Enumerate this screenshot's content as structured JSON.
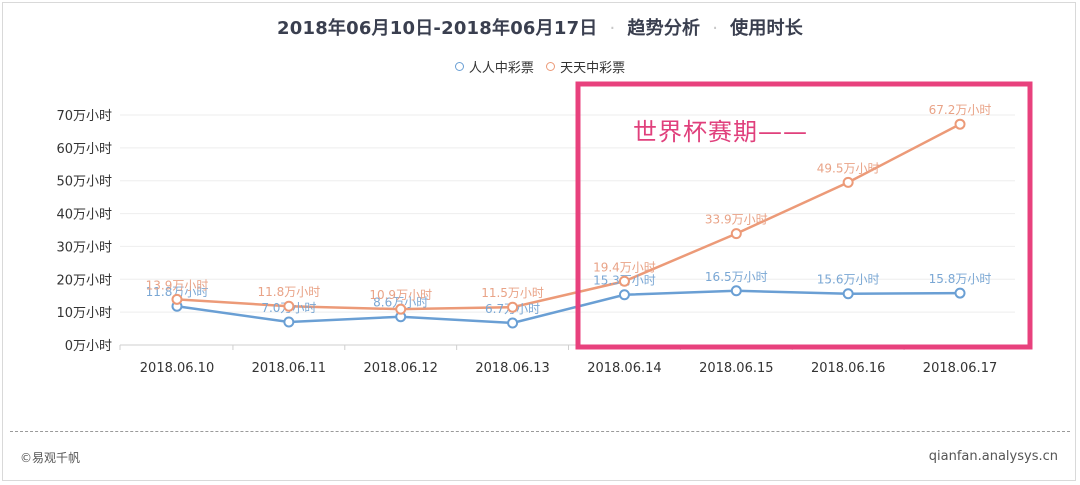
{
  "header": {
    "date_range": "2018年06月10日-2018年06月17日",
    "section": "趋势分析",
    "metric": "使用时长",
    "separator": "·"
  },
  "legend": [
    {
      "label": "人人中彩票",
      "color": "#6a9fd4"
    },
    {
      "label": "天天中彩票",
      "color": "#ec9a78"
    }
  ],
  "annotation": {
    "text": "世界杯赛期——",
    "color": "#e8417d"
  },
  "footer": {
    "copyright": "©易观千帆",
    "site": "qianfan.analysys.cn"
  },
  "chart_data": {
    "type": "line",
    "title": "2018年06月10日-2018年06月17日 · 趋势分析 · 使用时长",
    "xlabel": "",
    "ylabel": "",
    "unit_suffix": "万小时",
    "categories": [
      "2018.06.10",
      "2018.06.11",
      "2018.06.12",
      "2018.06.13",
      "2018.06.14",
      "2018.06.15",
      "2018.06.16",
      "2018.06.17"
    ],
    "y_ticks": [
      "0万小时",
      "10万小时",
      "20万小时",
      "30万小时",
      "40万小时",
      "50万小时",
      "60万小时",
      "70万小时"
    ],
    "ylim": [
      0,
      70
    ],
    "grid": true,
    "legend_position": "top",
    "series": [
      {
        "name": "人人中彩票",
        "color": "#6a9fd4",
        "values": [
          11.8,
          7.0,
          8.6,
          6.7,
          15.3,
          16.5,
          15.6,
          15.8
        ],
        "labels": [
          "11.8万小时",
          "7.0万小时",
          "8.6万小时",
          "6.7万小时",
          "15.3万小时",
          "16.5万小时",
          "15.6万小时",
          "15.8万小时"
        ]
      },
      {
        "name": "天天中彩票",
        "color": "#ec9a78",
        "values": [
          13.9,
          11.8,
          10.9,
          11.5,
          19.4,
          33.9,
          49.5,
          67.2
        ],
        "labels": [
          "13.9万小时",
          "11.8万小时",
          "10.9万小时",
          "11.5万小时",
          "19.4万小时",
          "33.9万小时",
          "49.5万小时",
          "67.2万小时"
        ]
      }
    ],
    "annotations": [
      {
        "text": "世界杯赛期——",
        "type": "highlight-box",
        "range": [
          "2018.06.14",
          "2018.06.17"
        ],
        "color": "#e8417d"
      }
    ]
  }
}
